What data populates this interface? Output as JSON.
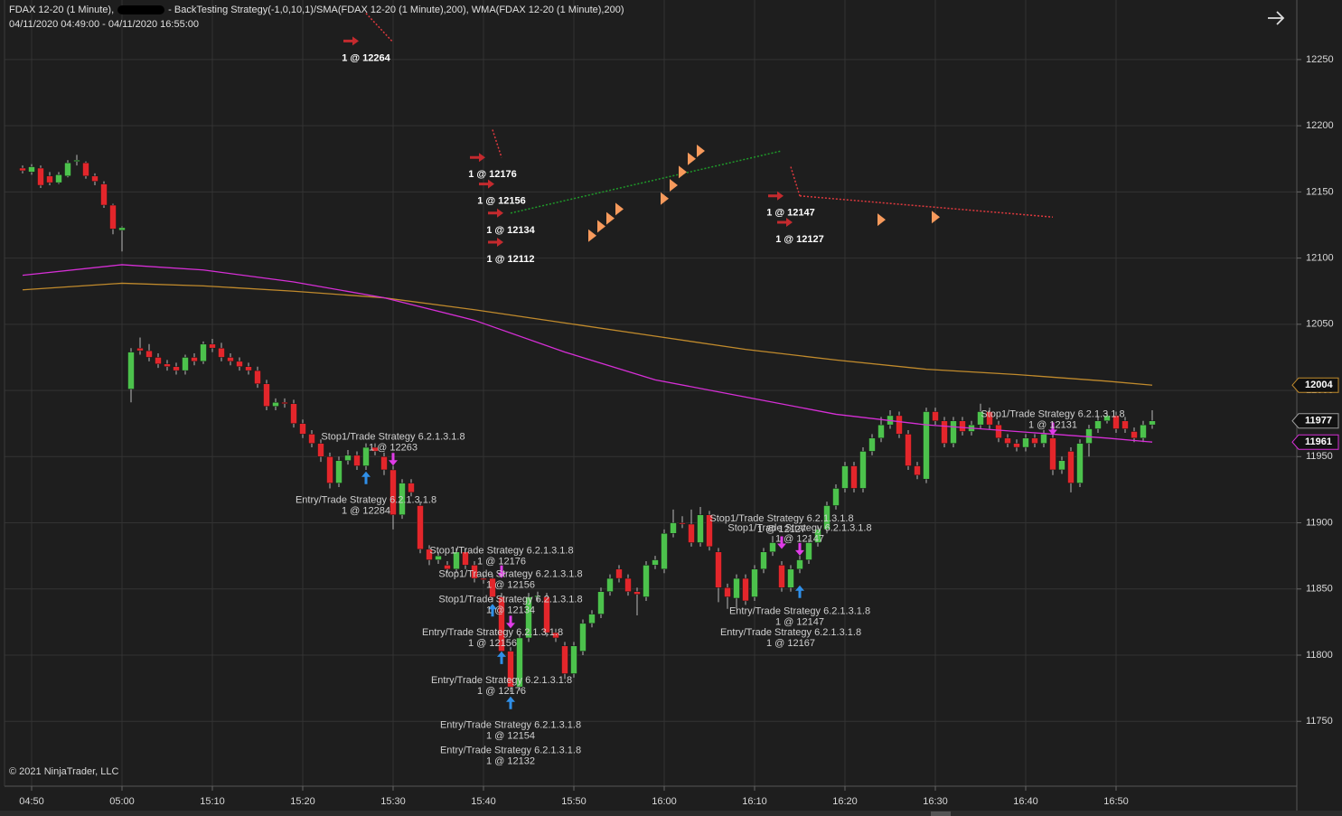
{
  "chart_data": {
    "type": "candlestick",
    "title": "FDAX 12-20 (1 Minute),",
    "title_suffix": "- BackTesting Strategy(-1,0,10,1)/SMA(FDAX 12-20 (1 Minute),200), WMA(FDAX 12-20 (1 Minute),200)",
    "subtitle": "04/11/2020 04:49:00 - 04/11/2020 16:55:00",
    "copyright": "© 2021 NinjaTrader, LLC",
    "categories": [
      null,
      "04:50",
      null,
      null,
      null,
      null,
      null,
      null,
      null,
      null,
      null,
      "05:00",
      null,
      null,
      null,
      null,
      null,
      null,
      null,
      null,
      null,
      "15:10",
      null,
      null,
      null,
      null,
      null,
      null,
      null,
      null,
      null,
      "15:20",
      null,
      null,
      null,
      null,
      null,
      null,
      null,
      null,
      null,
      "15:30",
      null,
      null,
      null,
      null,
      null,
      null,
      null,
      null,
      null,
      "15:40",
      null,
      null,
      null,
      null,
      null,
      null,
      null,
      null,
      null,
      "15:50",
      null,
      null,
      null,
      null,
      null,
      null,
      null,
      null,
      null,
      "16:00",
      null,
      null,
      null,
      null,
      null,
      null,
      null,
      null,
      null,
      "16:10",
      null,
      null,
      null,
      null,
      null,
      null,
      null,
      null,
      null,
      "16:20",
      null,
      null,
      null,
      null,
      null,
      null,
      null,
      null,
      null,
      "16:30",
      null,
      null,
      null,
      null,
      null,
      null,
      null,
      null,
      null,
      "16:40",
      null,
      null,
      null,
      null,
      null,
      null,
      null,
      null,
      null,
      "16:50",
      null,
      null,
      null,
      null
    ],
    "open": [
      12168,
      12165,
      12168,
      12162,
      12157,
      12162,
      12173,
      12172,
      12162,
      12156,
      12140,
      12121,
      12001,
      12032,
      12030,
      12025,
      12020,
      12018,
      12015,
      12025,
      12022,
      12035,
      12032,
      12025,
      12022,
      12018,
      12015,
      12005,
      11988,
      11991,
      11990,
      11975,
      11967,
      11960,
      11950,
      11930,
      11947,
      11951,
      11943,
      11957,
      11950,
      11940,
      11906,
      11930,
      11913,
      11880,
      11872,
      11868,
      11865,
      11878,
      11868,
      11858,
      11858,
      11844,
      11803,
      11776,
      11813,
      11844,
      11844,
      11817,
      11807,
      11786,
      11803,
      11824,
      11831,
      11848,
      11865,
      11858,
      11848,
      11844,
      11868,
      11865,
      11892,
      11900,
      11899,
      11885,
      11906,
      11878,
      11851,
      11843,
      11858,
      11844,
      11865,
      11878,
      11868,
      11851,
      11865,
      11872,
      11885,
      11895,
      11913,
      11926,
      11943,
      11926,
      11954,
      11964,
      11974,
      11981,
      11967,
      11943,
      11933,
      11984,
      11977,
      11960,
      11977,
      11969,
      11974,
      11984,
      11974,
      11964,
      11960,
      11957,
      11964,
      11960,
      11964,
      11940,
      11954,
      11930,
      11960,
      11971,
      11977,
      11981,
      11977,
      11969,
      11964,
      11974
    ],
    "high": [
      12170,
      12171,
      12170,
      12165,
      12165,
      12174,
      12178,
      12173,
      12164,
      12158,
      12141,
      12124,
      12032,
      12040,
      12035,
      12028,
      12023,
      12021,
      12027,
      12028,
      12037,
      12039,
      12036,
      12028,
      12025,
      12021,
      12018,
      12008,
      11994,
      11994,
      11993,
      11978,
      11970,
      11963,
      11953,
      11950,
      11955,
      11954,
      11960,
      11960,
      11953,
      11943,
      11933,
      11933,
      11916,
      11883,
      11878,
      11871,
      11881,
      11881,
      11871,
      11861,
      11861,
      11847,
      11806,
      11816,
      11847,
      11848,
      11847,
      11820,
      11810,
      11810,
      11827,
      11834,
      11851,
      11861,
      11868,
      11861,
      11851,
      11871,
      11875,
      11895,
      11910,
      11905,
      11910,
      11912,
      11909,
      11881,
      11854,
      11861,
      11861,
      11868,
      11881,
      11890,
      11871,
      11868,
      11875,
      11888,
      11898,
      11916,
      11929,
      11946,
      11946,
      11957,
      11967,
      11980,
      11985,
      11984,
      11970,
      11946,
      11987,
      11987,
      11980,
      11980,
      11980,
      11977,
      11990,
      11987,
      11977,
      11967,
      11963,
      11967,
      11967,
      11970,
      11967,
      11950,
      11957,
      11963,
      11974,
      11980,
      11984,
      11984,
      11980,
      11972,
      11977,
      11985
    ],
    "low": [
      12164,
      12163,
      12153,
      12155,
      12156,
      12161,
      12170,
      12160,
      12155,
      12138,
      12118,
      12105,
      11991,
      12027,
      12022,
      12017,
      12015,
      12012,
      12012,
      12019,
      12020,
      12029,
      12022,
      12019,
      12015,
      12012,
      12002,
      11985,
      11985,
      11987,
      11972,
      11964,
      11957,
      11946,
      11926,
      11927,
      11944,
      11940,
      11940,
      11951,
      11936,
      11895,
      11903,
      11920,
      11877,
      11868,
      11869,
      11862,
      11862,
      11865,
      11855,
      11854,
      11840,
      11799,
      11772,
      11773,
      11810,
      11841,
      11814,
      11810,
      11782,
      11783,
      11800,
      11821,
      11828,
      11845,
      11855,
      11845,
      11830,
      11841,
      11865,
      11862,
      11889,
      11896,
      11882,
      11882,
      11879,
      11840,
      11835,
      11835,
      11838,
      11841,
      11862,
      11875,
      11848,
      11848,
      11862,
      11869,
      11882,
      11892,
      11910,
      11923,
      11923,
      11923,
      11951,
      11961,
      11971,
      11964,
      11940,
      11933,
      11930,
      11974,
      11957,
      11957,
      11966,
      11966,
      11971,
      11971,
      11961,
      11957,
      11954,
      11954,
      11957,
      11957,
      11936,
      11937,
      11923,
      11927,
      11950,
      11968,
      11975,
      11968,
      11968,
      11961,
      11961,
      11971
    ],
    "close": [
      12166,
      12169,
      12155,
      12157,
      12163,
      12172,
      12174,
      12162,
      12158,
      12140,
      12122,
      12123,
      12029,
      12030,
      12025,
      12020,
      12018,
      12015,
      12025,
      12022,
      12035,
      12032,
      12025,
      12022,
      12018,
      12015,
      12005,
      11988,
      11991,
      11990,
      11975,
      11967,
      11960,
      11950,
      11930,
      11947,
      11951,
      11943,
      11957,
      11954,
      11940,
      11906,
      11930,
      11923,
      11880,
      11872,
      11875,
      11865,
      11878,
      11868,
      11858,
      11857,
      11844,
      11803,
      11776,
      11813,
      11844,
      11845,
      11817,
      11813,
      11786,
      11807,
      11824,
      11831,
      11848,
      11858,
      11858,
      11848,
      11846,
      11868,
      11872,
      11892,
      11900,
      11899,
      11885,
      11906,
      11882,
      11851,
      11844,
      11858,
      11841,
      11865,
      11878,
      11885,
      11851,
      11865,
      11872,
      11885,
      11895,
      11913,
      11926,
      11943,
      11926,
      11954,
      11964,
      11974,
      11981,
      11967,
      11943,
      11936,
      11984,
      11977,
      11960,
      11977,
      11969,
      11974,
      11984,
      11974,
      11964,
      11960,
      11957,
      11964,
      11960,
      11967,
      11940,
      11947,
      11930,
      11960,
      11971,
      11977,
      11981,
      11971,
      11971,
      11964,
      11974,
      11977
    ],
    "up_color": "#4cc24c",
    "down_color": "#e3262b",
    "wick_color": "#b8b8b8",
    "lines": [
      {
        "color": "#c08a2c",
        "x": [
          0,
          11,
          20,
          30,
          40,
          50,
          60,
          70,
          80,
          90,
          100,
          110,
          120,
          125
        ],
        "values": [
          12076,
          12081,
          12079,
          12075,
          12070,
          12061,
          12051,
          12041,
          12031,
          12023,
          12016,
          12012,
          12007,
          12004
        ]
      },
      {
        "color": "#d62fd6",
        "x": [
          0,
          11,
          20,
          30,
          40,
          50,
          60,
          70,
          80,
          90,
          100,
          110,
          120,
          125
        ],
        "values": [
          12087,
          12095,
          12091,
          12082,
          12070,
          12053,
          12029,
          12008,
          11995,
          11982,
          11974,
          11969,
          11964,
          11961
        ]
      }
    ],
    "price_markers": [
      {
        "value": 12004,
        "color": "#c08a2c"
      },
      {
        "value": 11977,
        "color": "#9a9a9a"
      },
      {
        "value": 11961,
        "color": "#d62fd6"
      }
    ],
    "annotations": [
      {
        "bar": 41,
        "price": 11969,
        "lines": [
          "Stop1/Trade Strategy 6.2.1.3.1.8",
          "1 @ 12263"
        ]
      },
      {
        "bar": 38,
        "price": 11921,
        "lines": [
          "Entry/Trade Strategy 6.2.1.3.1.8",
          "1 @ 12284"
        ]
      },
      {
        "bar": 53,
        "price": 11883,
        "lines": [
          "Stop1/Trade Strategy 6.2.1.3.1.8",
          "1 @ 12176"
        ]
      },
      {
        "bar": 54,
        "price": 11865,
        "lines": [
          "Stop1/Trade Strategy 6.2.1.3.1.8",
          "1 @ 12156"
        ]
      },
      {
        "bar": 54,
        "price": 11846,
        "lines": [
          "Stop1/Trade Strategy 6.2.1.3.1.8",
          "1 @ 12134"
        ]
      },
      {
        "bar": 52,
        "price": 11821,
        "lines": [
          "Entry/Trade Strategy 6.2.1.3.1.8",
          "1 @ 12156"
        ]
      },
      {
        "bar": 53,
        "price": 11785,
        "lines": [
          "Entry/Trade Strategy 6.2.1.3.1.8",
          "1 @ 12176"
        ]
      },
      {
        "bar": 54,
        "price": 11751,
        "lines": [
          "Entry/Trade Strategy 6.2.1.3.1.8",
          "1 @ 12154"
        ]
      },
      {
        "bar": 54,
        "price": 11732,
        "lines": [
          "Entry/Trade Strategy 6.2.1.3.1.8",
          "1 @ 12132"
        ]
      },
      {
        "bar": 84,
        "price": 11907,
        "lines": [
          "Stop1/Trade Strategy 6.2.1.3.1.8",
          "1 @ 12127"
        ]
      },
      {
        "bar": 86,
        "price": 11900,
        "lines": [
          "Stop1/Trade Strategy 6.2.1.3.1.8",
          "1 @ 12147"
        ]
      },
      {
        "bar": 86,
        "price": 11837,
        "lines": [
          "Entry/Trade Strategy 6.2.1.3.1.8",
          "1 @ 12147"
        ]
      },
      {
        "bar": 85,
        "price": 11821,
        "lines": [
          "Entry/Trade Strategy 6.2.1.3.1.8",
          "1 @ 12167"
        ]
      },
      {
        "bar": 114,
        "price": 11986,
        "lines": [
          "Stop1/Trade Strategy 6.2.1.3.1.8",
          "1 @ 12131"
        ]
      }
    ],
    "trade_labels": [
      {
        "bar": 38,
        "price": 12251,
        "text": "1 @ 12264"
      },
      {
        "bar": 52,
        "price": 12163,
        "text": "1 @ 12176"
      },
      {
        "bar": 53,
        "price": 12143,
        "text": "1 @ 12156"
      },
      {
        "bar": 54,
        "price": 12121,
        "text": "1 @ 12134"
      },
      {
        "bar": 54,
        "price": 12099,
        "text": "1 @ 12112"
      },
      {
        "bar": 85,
        "price": 12134,
        "text": "1 @ 12147"
      },
      {
        "bar": 86,
        "price": 12114,
        "text": "1 @ 12127"
      }
    ],
    "arrows": [
      {
        "bar": 38,
        "price": 11934,
        "dir": "up"
      },
      {
        "bar": 52,
        "price": 11834,
        "dir": "up"
      },
      {
        "bar": 53,
        "price": 11798,
        "dir": "up"
      },
      {
        "bar": 54,
        "price": 11764,
        "dir": "up"
      },
      {
        "bar": 86,
        "price": 11848,
        "dir": "up"
      },
      {
        "bar": 41,
        "price": 11948,
        "dir": "down"
      },
      {
        "bar": 53,
        "price": 11863,
        "dir": "down"
      },
      {
        "bar": 54,
        "price": 11825,
        "dir": "down"
      },
      {
        "bar": 84,
        "price": 11885,
        "dir": "down"
      },
      {
        "bar": 86,
        "price": 11880,
        "dir": "down"
      },
      {
        "bar": 114,
        "price": 11971,
        "dir": "down"
      }
    ],
    "entry_arrows": [
      {
        "bar": 37,
        "price": 12264
      },
      {
        "bar": 51,
        "price": 12176
      },
      {
        "bar": 52,
        "price": 12156
      },
      {
        "bar": 53,
        "price": 12134
      },
      {
        "bar": 53,
        "price": 12112
      },
      {
        "bar": 84,
        "price": 12147
      },
      {
        "bar": 85,
        "price": 12127
      }
    ],
    "fills": [
      {
        "bar": 63,
        "price": 12117
      },
      {
        "bar": 64,
        "price": 12124
      },
      {
        "bar": 65,
        "price": 12130
      },
      {
        "bar": 66,
        "price": 12137
      },
      {
        "bar": 71,
        "price": 12145
      },
      {
        "bar": 72,
        "price": 12155
      },
      {
        "bar": 73,
        "price": 12165
      },
      {
        "bar": 74,
        "price": 12175
      },
      {
        "bar": 75,
        "price": 12181
      },
      {
        "bar": 95,
        "price": 12129
      },
      {
        "bar": 101,
        "price": 12131
      }
    ],
    "trade_lines": [
      {
        "x": [
          38,
          41
        ],
        "values": [
          12285,
          12263
        ],
        "color": "#e0393e"
      },
      {
        "x": [
          52,
          53
        ],
        "values": [
          12197,
          12176
        ],
        "color": "#e0393e"
      },
      {
        "x": [
          54,
          84
        ],
        "values": [
          12134,
          12181
        ],
        "color": "#1f9a2a"
      },
      {
        "x": [
          85,
          86
        ],
        "values": [
          12169,
          12147
        ],
        "color": "#e0393e"
      },
      {
        "x": [
          86,
          114
        ],
        "values": [
          12147,
          12131
        ],
        "color": "#e0393e"
      }
    ],
    "ylim": [
      11701,
      12295
    ],
    "yticks": [
      11750,
      11800,
      11850,
      11900,
      11950,
      12000,
      12050,
      12100,
      12150,
      12200,
      12250
    ],
    "grid": true
  }
}
